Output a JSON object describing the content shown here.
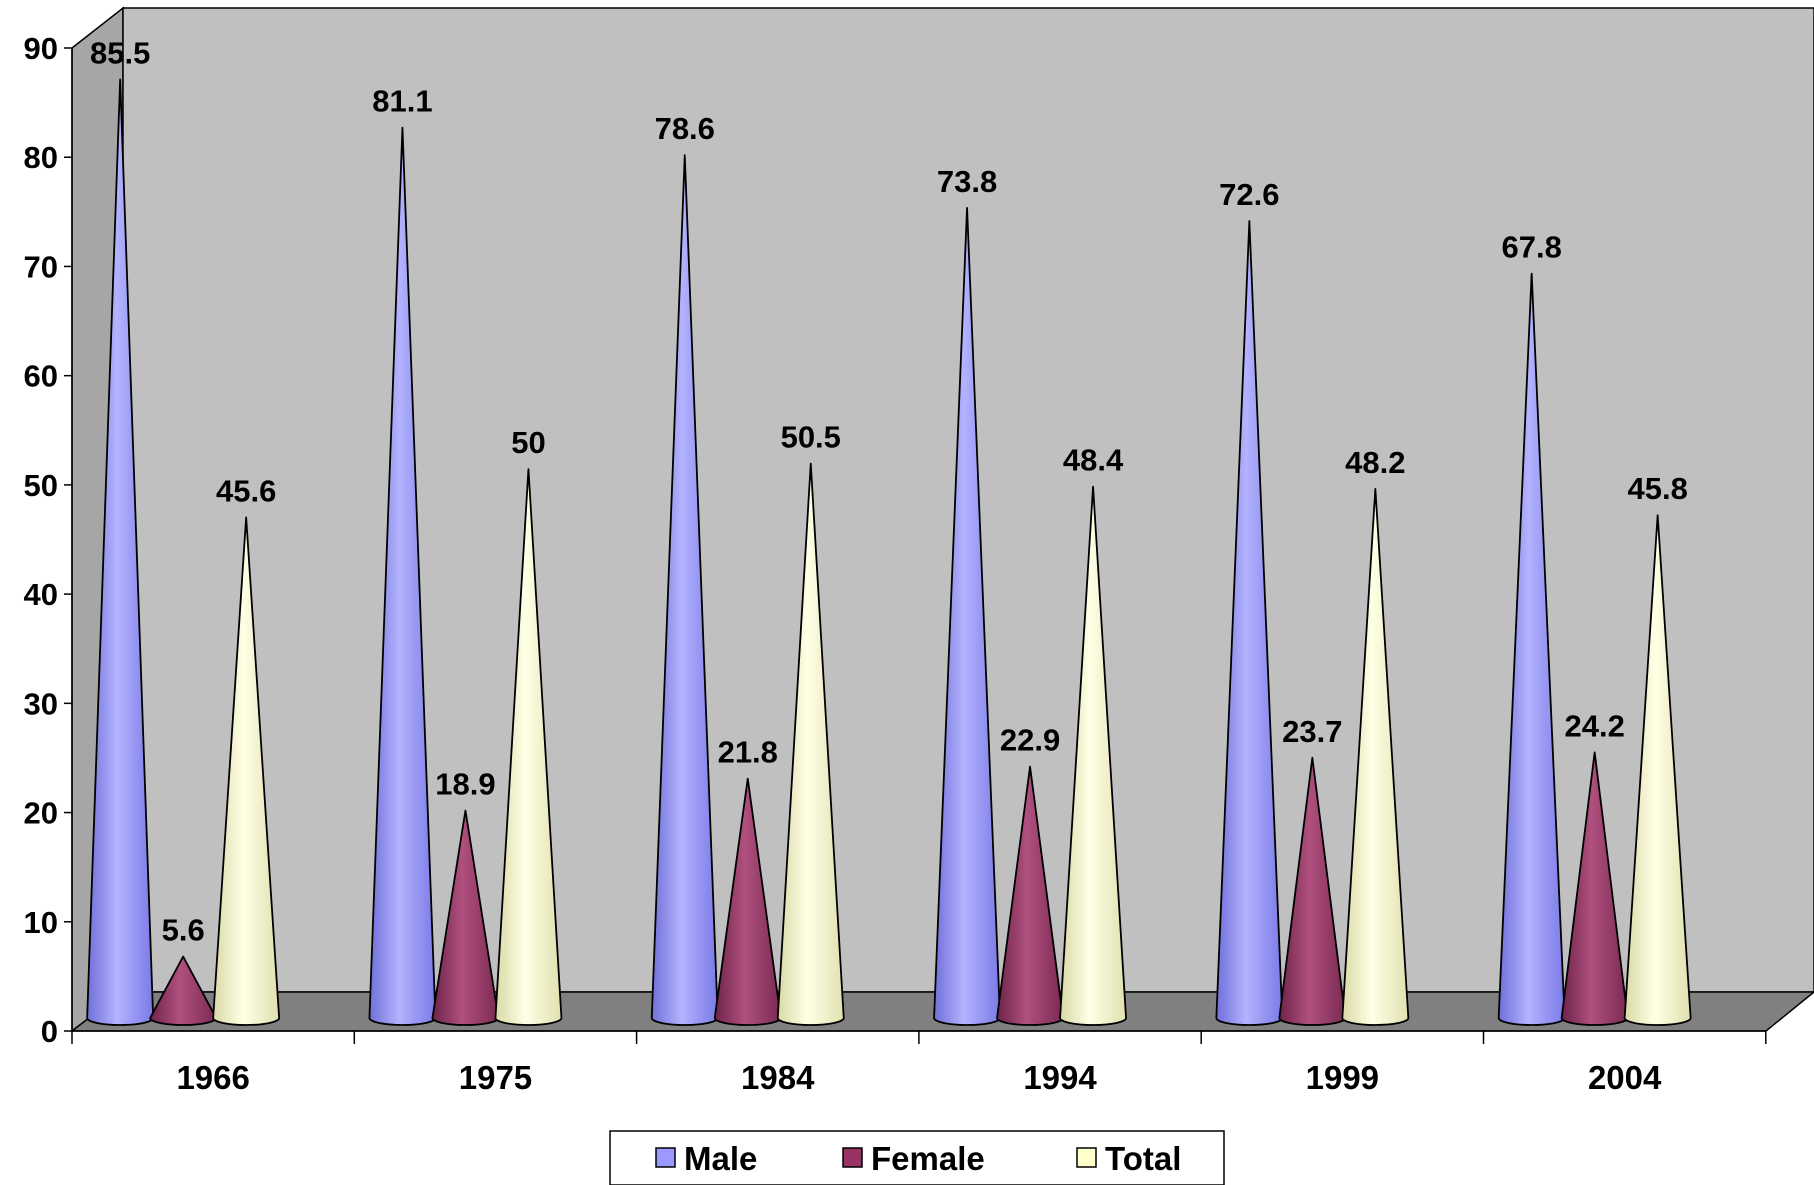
{
  "chart_data": {
    "type": "bar",
    "style": "3d-cone",
    "categories": [
      "1966",
      "1975",
      "1984",
      "1994",
      "1999",
      "2004"
    ],
    "series": [
      {
        "name": "Male",
        "values": [
          85.5,
          81.1,
          78.6,
          73.8,
          72.6,
          67.8
        ]
      },
      {
        "name": "Female",
        "values": [
          5.6,
          18.9,
          21.8,
          22.9,
          23.7,
          24.2
        ]
      },
      {
        "name": "Total",
        "values": [
          45.6,
          50,
          50.5,
          48.4,
          48.2,
          45.8
        ]
      }
    ],
    "data_labels": [
      [
        "85.5",
        "81.1",
        "78.6",
        "73.8",
        "72.6",
        "67.8"
      ],
      [
        "5.6",
        "18.9",
        "21.8",
        "22.9",
        "23.7",
        "24.2"
      ],
      [
        "45.6",
        "50",
        "50.5",
        "48.4",
        "48.2",
        "45.8"
      ]
    ],
    "y_ticks": [
      "0",
      "10",
      "20",
      "30",
      "40",
      "50",
      "60",
      "70",
      "80",
      "90"
    ],
    "ylim": [
      0,
      90
    ],
    "title": "",
    "xlabel": "",
    "ylabel": "",
    "grid": false,
    "legend": {
      "position": "bottom",
      "entries": [
        "Male",
        "Female",
        "Total"
      ]
    },
    "colors": {
      "Male": "#9999ff",
      "Female": "#993366",
      "Total": "#ffffcc",
      "back_wall": "#c0c0c0",
      "floor": "#808080",
      "outline": "#000000"
    }
  }
}
